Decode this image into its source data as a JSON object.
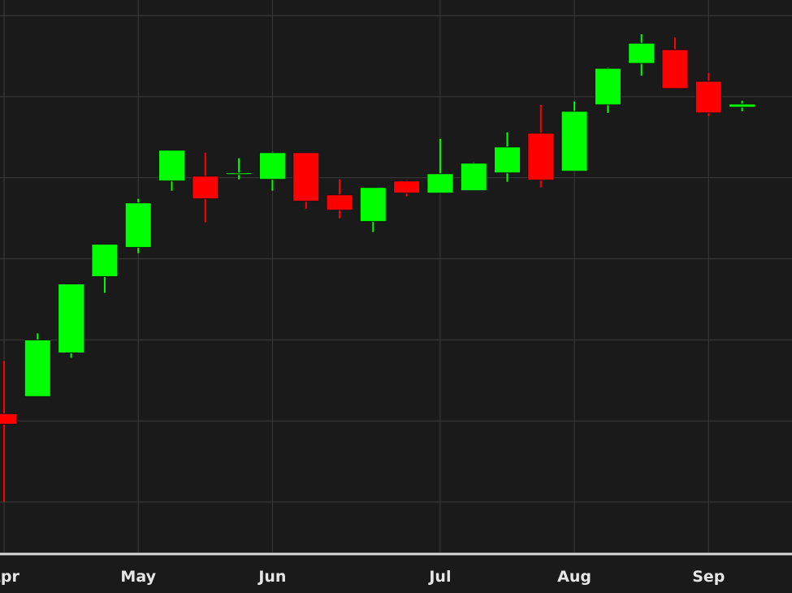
{
  "chart_data": {
    "type": "candlestick",
    "title": "",
    "xlabel": "",
    "ylabel": "",
    "y_ticks_visible": false,
    "ylim": [
      0,
      7
    ],
    "grid": true,
    "colors": {
      "up": "#00ff00",
      "down": "#ff0000",
      "background": "#1a1a1a",
      "grid": "#3a3a3a",
      "axis": "#d8d8d8",
      "text": "#e6e6e6"
    },
    "x_ticks": [
      {
        "label": "Apr",
        "x": 0
      },
      {
        "label": "May",
        "x": 4
      },
      {
        "label": "Jun",
        "x": 8
      },
      {
        "label": "Jul",
        "x": 13
      },
      {
        "label": "Aug",
        "x": 17
      },
      {
        "label": "Sep",
        "x": 21
      }
    ],
    "candles": [
      {
        "x": 0,
        "open": 1.09,
        "high": 1.74,
        "low": 0.0,
        "close": 0.96
      },
      {
        "x": 1,
        "open": 1.3,
        "high": 2.08,
        "low": 1.3,
        "close": 2.0
      },
      {
        "x": 2,
        "open": 1.84,
        "high": 2.69,
        "low": 1.78,
        "close": 2.69
      },
      {
        "x": 3,
        "open": 2.78,
        "high": 3.18,
        "low": 2.58,
        "close": 3.18
      },
      {
        "x": 4,
        "open": 3.14,
        "high": 3.74,
        "low": 3.07,
        "close": 3.69
      },
      {
        "x": 5,
        "open": 3.96,
        "high": 4.34,
        "low": 3.84,
        "close": 4.34
      },
      {
        "x": 6,
        "open": 4.02,
        "high": 4.31,
        "low": 3.45,
        "close": 3.74
      },
      {
        "x": 7,
        "open": 4.04,
        "high": 4.24,
        "low": 3.98,
        "close": 4.06
      },
      {
        "x": 8,
        "open": 3.98,
        "high": 4.32,
        "low": 3.84,
        "close": 4.31
      },
      {
        "x": 9,
        "open": 4.31,
        "high": 4.31,
        "low": 3.62,
        "close": 3.71
      },
      {
        "x": 10,
        "open": 3.79,
        "high": 3.98,
        "low": 3.5,
        "close": 3.6
      },
      {
        "x": 11,
        "open": 3.46,
        "high": 3.88,
        "low": 3.33,
        "close": 3.88
      },
      {
        "x": 12,
        "open": 3.96,
        "high": 3.97,
        "low": 3.77,
        "close": 3.81
      },
      {
        "x": 13,
        "open": 3.81,
        "high": 4.48,
        "low": 3.81,
        "close": 4.05
      },
      {
        "x": 14,
        "open": 3.84,
        "high": 4.19,
        "low": 3.84,
        "close": 4.18
      },
      {
        "x": 15,
        "open": 4.06,
        "high": 4.56,
        "low": 3.95,
        "close": 4.38
      },
      {
        "x": 16,
        "open": 4.55,
        "high": 4.9,
        "low": 3.88,
        "close": 3.97
      },
      {
        "x": 17,
        "open": 4.08,
        "high": 4.94,
        "low": 4.08,
        "close": 4.82
      },
      {
        "x": 18,
        "open": 4.9,
        "high": 5.36,
        "low": 4.8,
        "close": 5.35
      },
      {
        "x": 19,
        "open": 5.41,
        "high": 5.77,
        "low": 5.26,
        "close": 5.66
      },
      {
        "x": 20,
        "open": 5.58,
        "high": 5.73,
        "low": 5.1,
        "close": 5.1
      },
      {
        "x": 21,
        "open": 5.19,
        "high": 5.29,
        "low": 4.76,
        "close": 4.8
      },
      {
        "x": 22,
        "open": 4.87,
        "high": 4.95,
        "low": 4.82,
        "close": 4.91
      }
    ]
  }
}
